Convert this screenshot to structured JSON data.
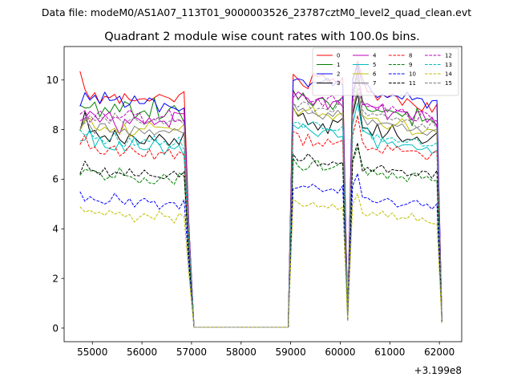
{
  "figure": {
    "suptitle": "Data file: modeM0/AS1A07_113T01_9000003526_23787cztM0_level2_quad_clean.evt"
  },
  "chart_data": {
    "type": "line",
    "title": "Quadrant 2 module wise count rates with 100.0s bins.",
    "xlabel": "",
    "ylabel": "",
    "x_offset_label": "+3.199e8",
    "xlim": [
      54430,
      62450
    ],
    "ylim": [
      -0.55,
      11.35
    ],
    "xticks": [
      55000,
      56000,
      57000,
      58000,
      59000,
      60000,
      61000,
      62000
    ],
    "xtick_labels": [
      "55000",
      "56000",
      "57000",
      "58000",
      "59000",
      "60000",
      "61000",
      "62000"
    ],
    "yticks": [
      0,
      2,
      4,
      6,
      8,
      10
    ],
    "ytick_labels": [
      "0",
      "2",
      "4",
      "6",
      "8",
      "10"
    ],
    "grid": false,
    "legend": {
      "placement": "top-right",
      "columns": 4
    },
    "x": [
      54750,
      54850,
      54950,
      55050,
      55150,
      55250,
      55350,
      55450,
      55550,
      55650,
      55750,
      55850,
      55950,
      56050,
      56150,
      56250,
      56350,
      56450,
      56550,
      56650,
      56750,
      56850,
      56950,
      57050,
      58950,
      59050,
      59150,
      59250,
      59350,
      59450,
      59550,
      59650,
      59750,
      59850,
      59950,
      60050,
      60150,
      60250,
      60350,
      60450,
      60550,
      60650,
      60750,
      60850,
      60950,
      61050,
      61150,
      61250,
      61350,
      61450,
      61550,
      61650,
      61750,
      61850,
      61950,
      62050
    ],
    "series": [
      {
        "name": "0",
        "color": "#ff0000",
        "dash": "solid",
        "values": [
          10.35,
          9.62,
          9.25,
          9.49,
          9.04,
          9.34,
          9.29,
          9.42,
          9.05,
          9.45,
          9.2,
          9.16,
          9.23,
          9.25,
          9.15,
          9.29,
          9.42,
          9.34,
          9.27,
          9.12,
          9.4,
          9.53,
          4.0,
          0.03,
          0.03,
          10.23,
          10.03,
          9.77,
          9.65,
          10.26,
          10.13,
          10.22,
          9.94,
          10.05,
          9.84,
          10.09,
          0.6,
          9.92,
          10.77,
          10.07,
          9.52,
          9.52,
          9.18,
          9.41,
          9.3,
          9.45,
          9.3,
          8.98,
          9.25,
          9.07,
          8.88,
          8.75,
          9.09,
          8.7,
          9.02,
          0.37
        ]
      },
      {
        "name": "1",
        "color": "#008000",
        "dash": "solid",
        "values": [
          8.99,
          8.87,
          8.89,
          9.11,
          8.52,
          8.89,
          8.67,
          9.03,
          8.71,
          9.13,
          9.02,
          8.45,
          8.67,
          8.76,
          8.51,
          9.27,
          8.43,
          8.53,
          8.83,
          8.97,
          8.71,
          8.3,
          3.86,
          0.03,
          0.03,
          9.6,
          9.21,
          9.48,
          9.12,
          8.95,
          9.24,
          9.27,
          9.09,
          8.81,
          9.14,
          9.31,
          0.56,
          9.24,
          10.32,
          9.16,
          8.8,
          8.72,
          8.79,
          8.71,
          8.8,
          8.73,
          8.68,
          8.53,
          8.71,
          8.15,
          8.87,
          8.34,
          8.43,
          8.37,
          8.17,
          0.33
        ]
      },
      {
        "name": "2",
        "color": "#0000ff",
        "dash": "solid",
        "values": [
          8.94,
          9.49,
          9.19,
          9.38,
          9.05,
          9.51,
          9.17,
          9.2,
          9.35,
          8.9,
          9.01,
          9.36,
          9.05,
          9.05,
          9.28,
          9.17,
          8.71,
          9.06,
          8.94,
          8.86,
          8.76,
          8.87,
          4.0,
          0.03,
          0.03,
          9.98,
          10.05,
          9.99,
          9.73,
          9.92,
          9.89,
          9.95,
          10.07,
          9.76,
          9.99,
          9.8,
          0.58,
          10.04,
          10.61,
          9.82,
          9.83,
          9.51,
          9.29,
          9.42,
          9.29,
          9.38,
          9.35,
          9.23,
          9.51,
          9.2,
          9.28,
          9.24,
          8.86,
          9.16,
          9.18,
          0.37
        ]
      },
      {
        "name": "3",
        "color": "#000000",
        "dash": "solid",
        "values": [
          7.95,
          8.72,
          7.9,
          7.97,
          7.67,
          7.75,
          7.51,
          7.98,
          7.6,
          7.43,
          7.82,
          7.68,
          7.47,
          7.43,
          7.78,
          7.55,
          7.81,
          7.62,
          7.36,
          7.64,
          7.39,
          7.89,
          3.47,
          0.03,
          0.03,
          8.89,
          8.54,
          8.66,
          8.19,
          8.31,
          7.98,
          8.24,
          7.84,
          8.38,
          8.29,
          8.46,
          0.5,
          8.57,
          9.46,
          8.07,
          8.05,
          7.76,
          8.23,
          7.65,
          7.86,
          8.19,
          7.76,
          7.51,
          7.61,
          7.59,
          7.7,
          7.44,
          7.52,
          7.7,
          7.87,
          0.33
        ]
      },
      {
        "name": "4",
        "color": "#bf00bf",
        "dash": "solid",
        "values": [
          8.36,
          8.45,
          8.74,
          8.58,
          8.3,
          8.55,
          8.71,
          8.22,
          7.81,
          8.42,
          8.24,
          8.51,
          8.4,
          8.24,
          8.48,
          8.2,
          8.33,
          8.34,
          8.1,
          8.7,
          8.64,
          8.64,
          3.8,
          0.03,
          0.03,
          9.29,
          9.52,
          9.38,
          9.25,
          8.99,
          9.25,
          9.3,
          8.82,
          9.12,
          9.17,
          8.92,
          0.55,
          9.37,
          10.51,
          9.0,
          9.04,
          8.92,
          8.88,
          8.99,
          8.4,
          8.66,
          8.76,
          8.72,
          8.72,
          8.4,
          8.73,
          8.72,
          8.29,
          8.51,
          8.13,
          0.33
        ]
      },
      {
        "name": "5",
        "color": "#00bfbf",
        "dash": "solid",
        "values": [
          7.54,
          7.57,
          8.02,
          7.3,
          7.68,
          7.3,
          7.23,
          7.17,
          7.52,
          7.13,
          7.33,
          7.69,
          7.25,
          7.18,
          7.23,
          7.57,
          7.42,
          6.99,
          7.31,
          7.22,
          7.37,
          6.93,
          3.3,
          0.03,
          0.03,
          8.19,
          8.04,
          8.23,
          8.04,
          7.88,
          7.72,
          7.94,
          8.0,
          7.96,
          7.69,
          7.72,
          0.46,
          8.2,
          9.09,
          7.97,
          7.85,
          7.74,
          7.23,
          7.67,
          7.42,
          7.51,
          7.28,
          7.38,
          7.39,
          7.38,
          7.2,
          7.2,
          7.29,
          7.04,
          7.17,
          0.31
        ]
      },
      {
        "name": "6",
        "color": "#bfbf00",
        "dash": "solid",
        "values": [
          7.95,
          8.36,
          8.46,
          8.06,
          7.96,
          8.1,
          7.94,
          8.05,
          7.83,
          8.21,
          7.72,
          7.81,
          8.04,
          8.02,
          8.31,
          8.11,
          8.1,
          8.08,
          8.07,
          7.98,
          8.01,
          8.22,
          3.62,
          0.03,
          0.03,
          8.86,
          8.59,
          8.76,
          8.79,
          8.92,
          8.53,
          8.64,
          8.58,
          8.4,
          8.61,
          8.67,
          0.52,
          8.77,
          9.69,
          8.57,
          8.43,
          8.47,
          8.45,
          8.16,
          8.02,
          8.15,
          8.23,
          8.45,
          8.15,
          7.79,
          7.86,
          7.84,
          8.01,
          8.0,
          7.88,
          0.33
        ]
      },
      {
        "name": "7",
        "color": "#808080",
        "dash": "solid",
        "values": [
          8.0,
          8.43,
          8.15,
          7.84,
          8.23,
          8.24,
          7.9,
          7.91,
          7.88,
          8.03,
          7.78,
          8.14,
          8.0,
          7.83,
          8.0,
          7.78,
          7.93,
          7.96,
          7.87,
          8.04,
          7.94,
          7.84,
          3.62,
          0.03,
          0.03,
          9.07,
          8.75,
          8.86,
          8.64,
          8.68,
          8.58,
          8.42,
          8.68,
          8.53,
          8.78,
          8.55,
          0.52,
          8.7,
          9.65,
          8.55,
          8.18,
          8.4,
          8.2,
          8.26,
          8.27,
          8.21,
          8.13,
          8.23,
          7.95,
          7.98,
          8.09,
          7.87,
          7.77,
          7.95,
          8.01,
          0.32
        ]
      },
      {
        "name": "8",
        "color": "#ff0000",
        "dash": "dashed",
        "values": [
          7.39,
          7.79,
          7.23,
          7.3,
          7.04,
          7.01,
          7.26,
          7.34,
          6.94,
          7.08,
          7.34,
          7.14,
          6.99,
          6.89,
          7.21,
          6.79,
          7.09,
          7.04,
          7.2,
          6.82,
          7.1,
          6.99,
          3.21,
          0.03,
          0.03,
          7.92,
          7.83,
          7.36,
          7.82,
          7.34,
          7.48,
          7.33,
          7.62,
          7.41,
          7.5,
          7.56,
          0.45,
          7.77,
          8.56,
          7.5,
          7.18,
          7.25,
          7.18,
          7.04,
          7.37,
          7.16,
          7.32,
          7.12,
          7.14,
          7.15,
          7.13,
          6.96,
          6.77,
          7.03,
          7.15,
          0.31
        ]
      },
      {
        "name": "9",
        "color": "#008000",
        "dash": "dashed",
        "values": [
          6.16,
          6.4,
          6.34,
          6.33,
          6.25,
          5.97,
          6.1,
          6.06,
          6.46,
          6.16,
          6.12,
          6.02,
          5.84,
          6.06,
          5.85,
          5.82,
          6.0,
          6.21,
          5.99,
          5.79,
          6.25,
          6.12,
          2.8,
          0.03,
          0.03,
          6.84,
          6.53,
          6.36,
          6.43,
          6.73,
          6.75,
          6.36,
          6.4,
          6.47,
          6.58,
          6.68,
          0.39,
          6.67,
          7.3,
          6.55,
          6.16,
          6.4,
          6.17,
          6.26,
          6.01,
          6.28,
          6.04,
          6.11,
          5.9,
          6.23,
          6.25,
          6.02,
          6.12,
          5.94,
          5.95,
          0.27
        ]
      },
      {
        "name": "10",
        "color": "#0000ff",
        "dash": "dashed",
        "values": [
          5.5,
          5.11,
          5.3,
          5.16,
          5.1,
          5.0,
          5.11,
          5.43,
          5.17,
          4.99,
          5.22,
          4.88,
          5.12,
          5.23,
          5.06,
          5.11,
          4.79,
          4.98,
          5.06,
          5.05,
          4.8,
          5.17,
          2.36,
          0.03,
          0.03,
          5.62,
          5.66,
          5.73,
          5.67,
          5.8,
          5.64,
          5.5,
          5.57,
          5.61,
          5.44,
          5.74,
          0.32,
          5.73,
          6.23,
          5.26,
          5.25,
          5.1,
          5.05,
          5.14,
          5.23,
          5.11,
          4.88,
          4.95,
          5.0,
          5.11,
          5.14,
          4.92,
          5.0,
          4.79,
          5.01,
          0.23
        ]
      },
      {
        "name": "11",
        "color": "#000000",
        "dash": "dashed",
        "values": [
          6.21,
          6.73,
          6.4,
          6.33,
          6.18,
          6.46,
          6.12,
          6.28,
          6.25,
          6.15,
          6.42,
          6.15,
          6.14,
          6.37,
          6.17,
          6.11,
          6.08,
          6.02,
          6.18,
          6.32,
          6.09,
          6.31,
          2.81,
          0.03,
          0.03,
          7.01,
          6.74,
          6.76,
          7.03,
          6.82,
          6.53,
          6.64,
          6.57,
          6.7,
          6.62,
          6.67,
          0.41,
          6.79,
          7.47,
          6.31,
          6.48,
          6.29,
          6.49,
          6.56,
          6.26,
          6.39,
          6.35,
          6.35,
          6.14,
          6.21,
          6.12,
          6.33,
          6.3,
          6.04,
          6.35,
          0.28
        ]
      },
      {
        "name": "12",
        "color": "#bf00bf",
        "dash": "dashed",
        "values": [
          8.62,
          8.77,
          8.3,
          8.52,
          8.76,
          8.59,
          8.37,
          8.5,
          8.46,
          8.58,
          8.8,
          8.57,
          8.69,
          8.24,
          8.31,
          8.43,
          8.49,
          8.54,
          8.81,
          8.32,
          8.37,
          8.37,
          3.87,
          0.03,
          0.03,
          9.53,
          9.25,
          9.41,
          9.11,
          9.13,
          9.25,
          8.93,
          9.28,
          9.38,
          9.02,
          9.34,
          0.55,
          9.55,
          10.1,
          9.04,
          8.93,
          8.94,
          8.77,
          9.06,
          8.71,
          8.94,
          8.75,
          8.84,
          8.57,
          8.38,
          8.35,
          8.74,
          8.65,
          8.43,
          8.34,
          0.35
        ]
      },
      {
        "name": "13",
        "color": "#00bfbf",
        "dash": "dashed",
        "values": [
          7.99,
          7.76,
          7.89,
          7.64,
          7.7,
          7.43,
          7.58,
          7.88,
          7.4,
          7.32,
          7.66,
          7.36,
          7.44,
          7.6,
          7.52,
          7.75,
          7.36,
          7.53,
          7.3,
          7.41,
          7.7,
          7.15,
          3.41,
          0.03,
          0.03,
          8.27,
          8.3,
          8.07,
          8.21,
          8.31,
          8.26,
          8.03,
          8.03,
          7.98,
          7.96,
          8.13,
          0.47,
          8.25,
          9.06,
          7.93,
          8.1,
          7.59,
          7.81,
          7.49,
          7.64,
          7.67,
          7.5,
          7.51,
          7.49,
          7.62,
          7.63,
          7.34,
          7.35,
          7.35,
          7.47,
          0.31
        ]
      },
      {
        "name": "14",
        "color": "#bfbf00",
        "dash": "dashed",
        "values": [
          4.89,
          4.68,
          4.75,
          4.62,
          4.67,
          4.54,
          4.75,
          4.59,
          4.67,
          4.48,
          4.58,
          4.27,
          4.47,
          4.61,
          4.5,
          4.38,
          4.72,
          4.51,
          4.49,
          4.23,
          4.62,
          4.49,
          2.09,
          0.03,
          0.03,
          5.19,
          5.05,
          4.91,
          4.94,
          5.07,
          4.87,
          4.93,
          4.84,
          4.99,
          4.78,
          4.87,
          0.29,
          4.98,
          5.42,
          4.62,
          4.51,
          4.66,
          4.54,
          4.72,
          4.47,
          4.64,
          4.38,
          4.45,
          4.41,
          4.63,
          4.31,
          4.44,
          4.29,
          4.21,
          4.2,
          0.2
        ]
      },
      {
        "name": "15",
        "color": "#808080",
        "dash": "dashed",
        "values": [
          8.1,
          8.27,
          8.57,
          8.36,
          8.47,
          8.47,
          8.24,
          8.67,
          8.41,
          8.22,
          8.39,
          8.46,
          8.3,
          8.21,
          8.36,
          8.4,
          8.39,
          8.21,
          8.34,
          8.36,
          8.41,
          8.21,
          3.74,
          0.03,
          0.03,
          9.05,
          8.91,
          9.13,
          9.04,
          8.68,
          8.85,
          8.86,
          8.8,
          8.69,
          9.02,
          8.99,
          0.53,
          9.03,
          10.0,
          8.79,
          8.56,
          8.64,
          8.58,
          8.64,
          8.5,
          8.39,
          8.49,
          8.3,
          8.42,
          8.27,
          8.06,
          8.23,
          8.03,
          8.33,
          8.05,
          0.33
        ]
      }
    ]
  }
}
